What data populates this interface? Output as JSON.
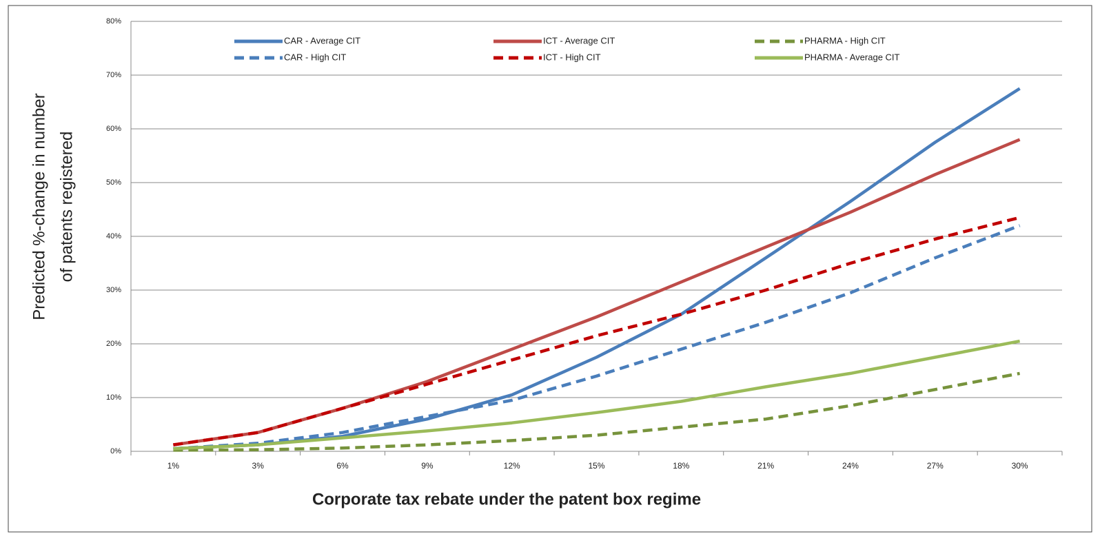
{
  "chart_data": {
    "type": "line",
    "x_label": "Corporate tax rebate under the patent box regime",
    "y_label": [
      "Predicted %-change in number",
      "of patents registered"
    ],
    "categories": [
      "1%",
      "3%",
      "6%",
      "9%",
      "12%",
      "15%",
      "18%",
      "21%",
      "24%",
      "27%",
      "30%"
    ],
    "series": [
      {
        "name": "CAR - Average CIT",
        "color": "#4a7ebb",
        "dash": false,
        "values": [
          0.5,
          1.2,
          2.8,
          6,
          10.5,
          17.5,
          25.5,
          36,
          46.5,
          57.5,
          67.5
        ]
      },
      {
        "name": "CAR - High CIT",
        "color": "#4a7ebb",
        "dash": true,
        "values": [
          0.5,
          1.5,
          3.5,
          6.5,
          9.5,
          14,
          19,
          24,
          29.5,
          36,
          42
        ]
      },
      {
        "name": "ICT - Average CIT",
        "color": "#be4b48",
        "dash": false,
        "values": [
          1.2,
          3.5,
          8,
          13,
          19,
          25,
          31.5,
          38,
          44.5,
          51.5,
          58
        ]
      },
      {
        "name": "ICT - High CIT",
        "color": "#c00000",
        "dash": true,
        "values": [
          1.2,
          3.5,
          8,
          12.5,
          17,
          21.5,
          25.5,
          30,
          35,
          39.5,
          43.5
        ]
      },
      {
        "name": "PHARMA - High CIT",
        "color": "#77933c",
        "dash": true,
        "values": [
          0.2,
          0.3,
          0.6,
          1.2,
          2,
          3,
          4.5,
          6,
          8.5,
          11.5,
          14.5
        ]
      },
      {
        "name": "PHARMA - Average CIT",
        "color": "#9bbb59",
        "dash": false,
        "values": [
          0.5,
          1.2,
          2.5,
          3.8,
          5.3,
          7.2,
          9.3,
          12,
          14.5,
          17.5,
          20.5
        ]
      }
    ],
    "ylim": [
      0,
      80
    ],
    "yticks": [
      {
        "value": 0,
        "label": "0%"
      },
      {
        "value": 10,
        "label": "10%"
      },
      {
        "value": 20,
        "label": "20%"
      },
      {
        "value": 30,
        "label": "30%"
      },
      {
        "value": 40,
        "label": "40%"
      },
      {
        "value": 50,
        "label": "50%"
      },
      {
        "value": 60,
        "label": "60%"
      },
      {
        "value": 70,
        "label": "70%"
      },
      {
        "value": 80,
        "label": "80%"
      }
    ],
    "grid": true
  }
}
